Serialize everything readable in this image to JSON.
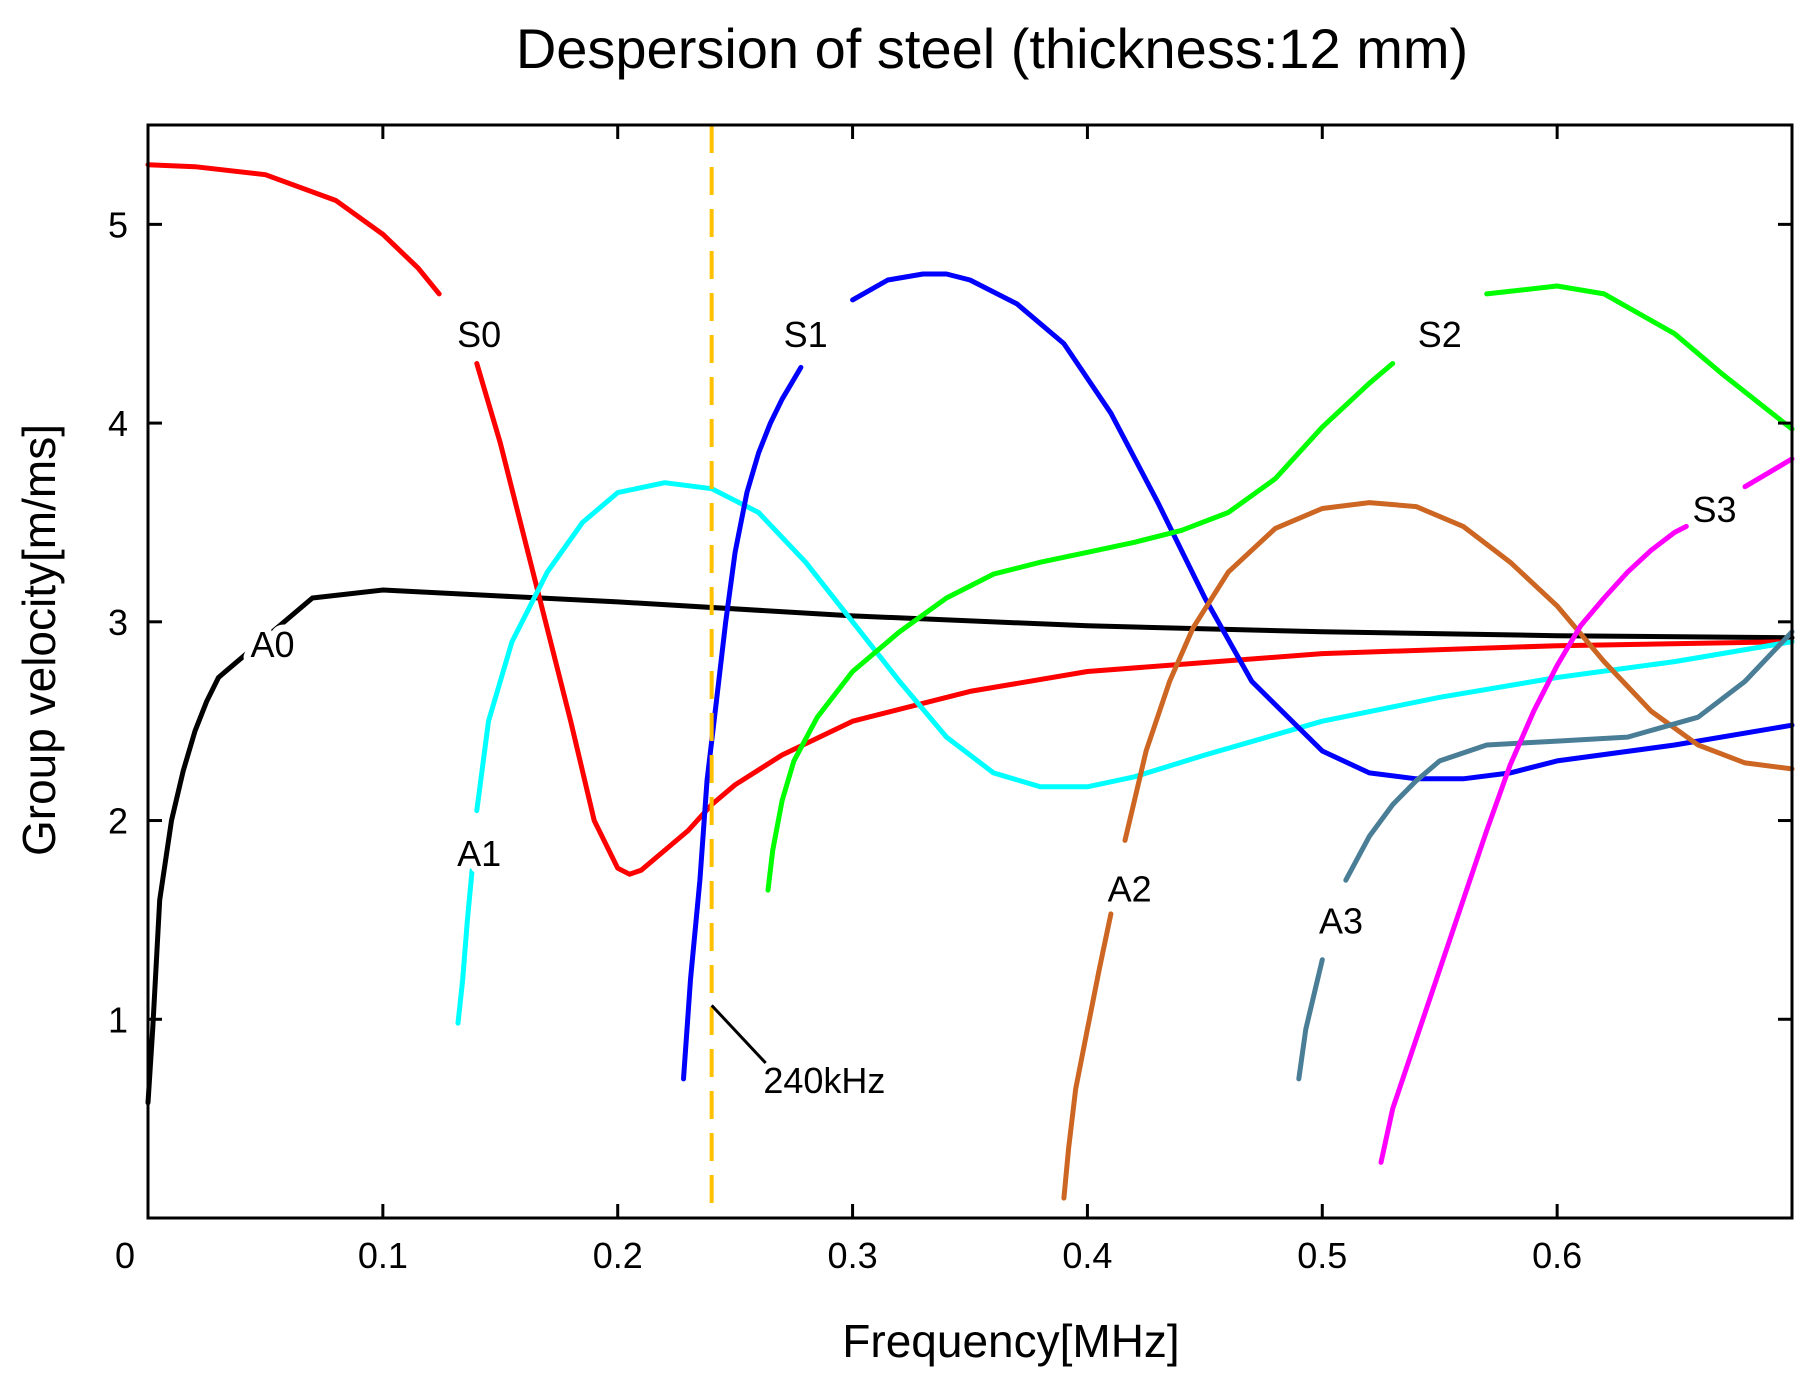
{
  "chart_data": {
    "type": "line",
    "title": "Despersion of steel  (thickness:12 mm)",
    "xlabel": "Frequency[MHz]",
    "ylabel": "Group velocity[m/ms]",
    "xlim": [
      0,
      0.7
    ],
    "ylim": [
      0,
      5.5
    ],
    "grid": false,
    "legend": "none",
    "x_ticks": [
      {
        "value": 0,
        "label": "0"
      },
      {
        "value": 0.1,
        "label": "0.1"
      },
      {
        "value": 0.2,
        "label": "0.2"
      },
      {
        "value": 0.3,
        "label": "0.3"
      },
      {
        "value": 0.4,
        "label": "0.4"
      },
      {
        "value": 0.5,
        "label": "0.5"
      },
      {
        "value": 0.6,
        "label": "0.6"
      }
    ],
    "y_ticks": [
      {
        "value": 1,
        "label": "1"
      },
      {
        "value": 2,
        "label": "2"
      },
      {
        "value": 3,
        "label": "3"
      },
      {
        "value": 4,
        "label": "4"
      },
      {
        "value": 5,
        "label": "5"
      }
    ],
    "series": [
      {
        "name": "A0",
        "color": "#000000",
        "label_at": [
          0.053,
          2.87
        ],
        "x": [
          0.0,
          0.002,
          0.005,
          0.01,
          0.015,
          0.02,
          0.025,
          0.03,
          0.033,
          0.07,
          0.1,
          0.15,
          0.2,
          0.3,
          0.4,
          0.5,
          0.6,
          0.7
        ],
        "y": [
          0.58,
          0.95,
          1.6,
          2.0,
          2.25,
          2.45,
          2.6,
          2.72,
          2.75,
          3.12,
          3.16,
          3.13,
          3.1,
          3.03,
          2.98,
          2.95,
          2.93,
          2.92
        ]
      },
      {
        "name": "S0",
        "color": "#ff0000",
        "label_at": [
          0.141,
          4.43
        ],
        "x": [
          0.0,
          0.02,
          0.05,
          0.08,
          0.1,
          0.115,
          0.124
        ],
        "y": [
          5.3,
          5.29,
          5.25,
          5.12,
          4.95,
          4.78,
          4.65
        ],
        "x2": [
          0.14,
          0.15,
          0.165,
          0.18,
          0.19,
          0.2,
          0.205,
          0.21,
          0.22,
          0.23,
          0.24,
          0.25,
          0.27,
          0.3,
          0.35,
          0.4,
          0.5,
          0.6,
          0.7
        ],
        "y2": [
          4.3,
          3.9,
          3.2,
          2.5,
          2.0,
          1.76,
          1.73,
          1.75,
          1.85,
          1.95,
          2.08,
          2.18,
          2.33,
          2.5,
          2.65,
          2.75,
          2.84,
          2.88,
          2.9
        ]
      },
      {
        "name": "A1",
        "color": "#00ffff",
        "label_at": [
          0.141,
          1.82
        ],
        "x": [
          0.132,
          0.134,
          0.136,
          0.138
        ],
        "y": [
          0.98,
          1.2,
          1.5,
          1.75
        ],
        "x2": [
          0.14,
          0.145,
          0.155,
          0.17,
          0.185,
          0.2,
          0.22,
          0.24,
          0.26,
          0.28,
          0.3,
          0.32,
          0.34,
          0.36,
          0.38,
          0.4,
          0.42,
          0.45,
          0.5,
          0.55,
          0.6,
          0.65,
          0.7
        ],
        "y2": [
          2.05,
          2.5,
          2.9,
          3.25,
          3.5,
          3.65,
          3.7,
          3.67,
          3.55,
          3.3,
          3.0,
          2.7,
          2.42,
          2.24,
          2.17,
          2.17,
          2.22,
          2.33,
          2.5,
          2.62,
          2.72,
          2.8,
          2.9
        ]
      },
      {
        "name": "S1",
        "color": "#0000ff",
        "label_at": [
          0.28,
          4.43
        ],
        "x": [
          0.228,
          0.231,
          0.235,
          0.238,
          0.242,
          0.246,
          0.25,
          0.255,
          0.26,
          0.265,
          0.27,
          0.278
        ],
        "y": [
          0.7,
          1.2,
          1.7,
          2.2,
          2.6,
          3.0,
          3.35,
          3.65,
          3.85,
          4.0,
          4.12,
          4.28
        ],
        "x2": [
          0.3,
          0.315,
          0.33,
          0.34,
          0.35,
          0.37,
          0.39,
          0.41,
          0.43,
          0.45,
          0.47,
          0.5,
          0.52,
          0.54,
          0.56,
          0.58,
          0.6,
          0.65,
          0.7
        ],
        "y2": [
          4.62,
          4.72,
          4.75,
          4.75,
          4.72,
          4.6,
          4.4,
          4.05,
          3.6,
          3.12,
          2.7,
          2.35,
          2.24,
          2.21,
          2.21,
          2.24,
          2.3,
          2.38,
          2.48
        ]
      },
      {
        "name": "S2",
        "color": "#00ff00",
        "label_at": [
          0.55,
          4.43
        ],
        "x": [
          0.264,
          0.266,
          0.27,
          0.275,
          0.285,
          0.3,
          0.32,
          0.34,
          0.36,
          0.38,
          0.4,
          0.42,
          0.44,
          0.46,
          0.48,
          0.5,
          0.52,
          0.53
        ],
        "y": [
          1.65,
          1.85,
          2.1,
          2.3,
          2.52,
          2.75,
          2.95,
          3.12,
          3.24,
          3.3,
          3.35,
          3.4,
          3.46,
          3.55,
          3.72,
          3.98,
          4.2,
          4.3
        ],
        "x2": [
          0.57,
          0.6,
          0.62,
          0.65,
          0.67,
          0.7
        ],
        "y2": [
          4.65,
          4.69,
          4.65,
          4.45,
          4.25,
          3.97
        ]
      },
      {
        "name": "A2",
        "color": "#cc6622",
        "label_at": [
          0.418,
          1.64
        ],
        "x": [
          0.39,
          0.392,
          0.395,
          0.4,
          0.405,
          0.41
        ],
        "y": [
          0.1,
          0.35,
          0.65,
          0.95,
          1.25,
          1.53
        ],
        "x2": [
          0.416,
          0.42,
          0.425,
          0.435,
          0.445,
          0.46,
          0.48,
          0.5,
          0.52,
          0.54,
          0.56,
          0.58,
          0.6,
          0.62,
          0.64,
          0.66,
          0.68,
          0.7
        ],
        "y2": [
          1.9,
          2.1,
          2.35,
          2.7,
          2.97,
          3.25,
          3.47,
          3.57,
          3.6,
          3.58,
          3.48,
          3.3,
          3.08,
          2.8,
          2.55,
          2.38,
          2.29,
          2.26
        ]
      },
      {
        "name": "A3",
        "color": "#4a7e96",
        "label_at": [
          0.508,
          1.48
        ],
        "x": [
          0.49,
          0.493,
          0.497,
          0.5
        ],
        "y": [
          0.7,
          0.95,
          1.15,
          1.3
        ],
        "x2": [
          0.51,
          0.52,
          0.53,
          0.54,
          0.55,
          0.57,
          0.6,
          0.63,
          0.66,
          0.68,
          0.7
        ],
        "y2": [
          1.7,
          1.92,
          2.08,
          2.2,
          2.3,
          2.38,
          2.4,
          2.42,
          2.52,
          2.7,
          2.95
        ]
      },
      {
        "name": "S3",
        "color": "#ff00ff",
        "label_at": [
          0.667,
          3.55
        ],
        "x": [
          0.525,
          0.53,
          0.54,
          0.55,
          0.56,
          0.57,
          0.58,
          0.59,
          0.6,
          0.61,
          0.62,
          0.63,
          0.64,
          0.65,
          0.655
        ],
        "y": [
          0.28,
          0.55,
          0.9,
          1.25,
          1.6,
          1.95,
          2.28,
          2.55,
          2.78,
          2.98,
          3.12,
          3.25,
          3.36,
          3.45,
          3.48
        ],
        "x2": [
          0.68,
          0.69,
          0.7
        ],
        "y2": [
          3.68,
          3.75,
          3.82
        ]
      }
    ],
    "annotations": [
      {
        "text": "240kHz",
        "x": 0.24,
        "color": "#ffc000",
        "style": "dashed",
        "label_at": [
          0.262,
          0.63
        ],
        "leader_from": [
          0.24,
          1.07
        ],
        "leader_to": [
          0.263,
          0.78
        ]
      }
    ]
  }
}
